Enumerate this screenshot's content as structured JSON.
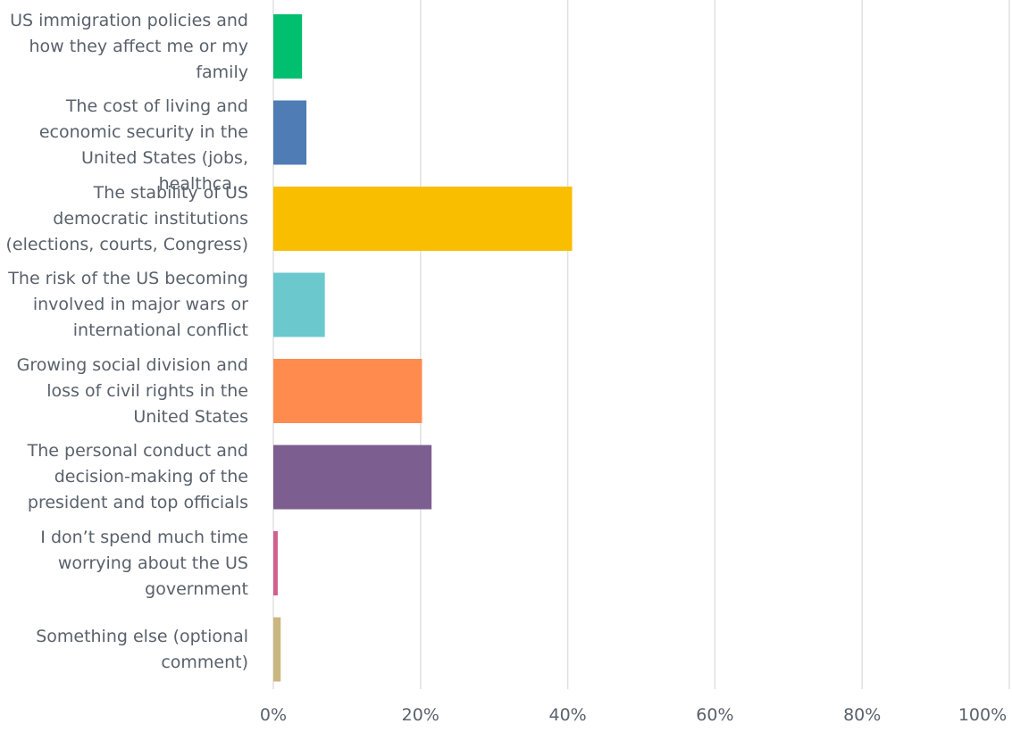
{
  "chart_data": {
    "type": "bar",
    "orientation": "horizontal",
    "categories": [
      "US immigration policies and how they affect me or my family",
      "The cost of living and economic security in the United States (jobs, healthca...",
      "The stability of US democratic institutions (elections, courts, Congress)",
      "The risk of the US becoming involved in major wars or international conflict",
      "Growing social division and loss of civil rights in the United States",
      "The personal conduct and decision-making of the president and top officials",
      "I don’t spend much time worrying about the US government",
      "Something else (optional comment)"
    ],
    "values": [
      3.9,
      4.5,
      40.6,
      7.0,
      20.2,
      21.5,
      0.6,
      1.0
    ],
    "colors": [
      "#00bf6f",
      "#507cb6",
      "#f9be00",
      "#6bc8cd",
      "#ff8b4f",
      "#7d5e90",
      "#d25f90",
      "#c9b77f"
    ],
    "xlim": [
      0,
      100
    ],
    "ticks": [
      "0%",
      "20%",
      "40%",
      "60%",
      "80%",
      "100%"
    ],
    "tick_values": [
      0,
      20,
      40,
      60,
      80,
      100
    ],
    "grid": true,
    "title": "",
    "xlabel": "",
    "ylabel": ""
  }
}
